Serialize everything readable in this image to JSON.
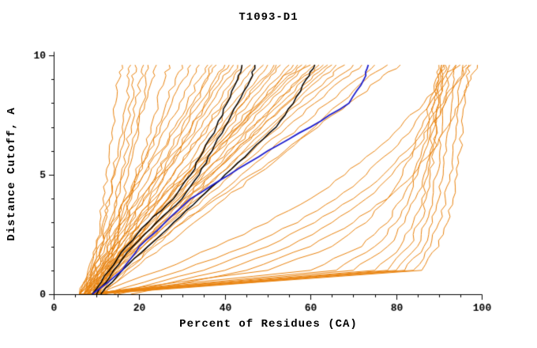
{
  "chart_data": {
    "type": "line",
    "title": "T1093-D1",
    "xlabel": "Percent of Residues (CA)",
    "ylabel": "Distance Cutoff, A",
    "xlim": [
      0,
      100
    ],
    "ylim": [
      0,
      10
    ],
    "x_ticks": [
      0,
      20,
      40,
      60,
      80,
      100
    ],
    "x_minor_step": 5,
    "y_ticks": [
      0,
      5,
      10
    ],
    "y_minor_step": 1,
    "grid": false,
    "legend": "none",
    "axis_color": "#000000",
    "y_grid": [
      0,
      1,
      2,
      3,
      4,
      5,
      6,
      7,
      8,
      9,
      9.6
    ],
    "series_groups": [
      {
        "key": "model-curves",
        "color": "#e8820e",
        "width": 1,
        "jitter": 3.2,
        "curves": [
          [
            8,
            9,
            10,
            10.8,
            11.5,
            12.2,
            13,
            13.8,
            14.5,
            15.3,
            16
          ],
          [
            9,
            10,
            11,
            12,
            13,
            14,
            15,
            16,
            17,
            17.6,
            18
          ],
          [
            10,
            11.2,
            12.4,
            13.5,
            14.7,
            15.8,
            17,
            18.1,
            19.2,
            20.3,
            21
          ],
          [
            8,
            9.7,
            11.4,
            13,
            14.7,
            16.3,
            18,
            19.7,
            21.3,
            23,
            24
          ],
          [
            11,
            12.7,
            14.4,
            16,
            17.7,
            19.3,
            21,
            22.7,
            24.3,
            26,
            27
          ],
          [
            9,
            11.2,
            13.4,
            15.5,
            17.7,
            19.8,
            22,
            24.1,
            26.3,
            28.4,
            30
          ],
          [
            12,
            13,
            14.2,
            15.3,
            16.4,
            17.5,
            18.6,
            19.7,
            20.8,
            21.5,
            22
          ],
          [
            7,
            8.5,
            10,
            11.5,
            13,
            14.3,
            15.6,
            16.9,
            18,
            18.6,
            19
          ],
          [
            6,
            8.7,
            11.4,
            14.1,
            16.8,
            19.5,
            22.2,
            24.9,
            27.6,
            30.3,
            32
          ],
          [
            7,
            9.8,
            12.6,
            15.4,
            18.2,
            21,
            23.8,
            26.6,
            29.4,
            32.2,
            34
          ],
          [
            8,
            10.9,
            13.8,
            16.7,
            19.6,
            22.5,
            25.4,
            28.3,
            31.2,
            34.1,
            36
          ],
          [
            6,
            8,
            10.5,
            13.5,
            17,
            21,
            25,
            29,
            32.5,
            35.5,
            37
          ],
          [
            9,
            12,
            15,
            18,
            21,
            24,
            27,
            30,
            33,
            36,
            38
          ],
          [
            7,
            10.4,
            13.8,
            17.2,
            20.6,
            24,
            27.4,
            30.8,
            34.2,
            37.6,
            40
          ],
          [
            10,
            13.2,
            16.4,
            19.5,
            22.7,
            25.8,
            29,
            32.2,
            35.3,
            38.5,
            41
          ],
          [
            8,
            11.6,
            15.2,
            18.8,
            22.4,
            26,
            29.6,
            33.2,
            36.8,
            40.4,
            43
          ],
          [
            6,
            9,
            12,
            16,
            20,
            25,
            30,
            34.5,
            38.5,
            42,
            44
          ],
          [
            9,
            12.8,
            16.6,
            20.4,
            24.2,
            28,
            31.8,
            35.6,
            39.4,
            43.2,
            46
          ],
          [
            7,
            11.2,
            15.3,
            19.5,
            23.6,
            27.8,
            31.9,
            36.1,
            40.2,
            44.4,
            47
          ],
          [
            8,
            12.2,
            16.5,
            20.7,
            25,
            29.2,
            33.5,
            37.7,
            42,
            46.2,
            49
          ],
          [
            10,
            14.2,
            18.3,
            22.5,
            26.7,
            30.8,
            35,
            39.2,
            43.3,
            47.5,
            50
          ],
          [
            6,
            10.8,
            15.6,
            20.4,
            25.2,
            30,
            34.8,
            39.6,
            44.4,
            49.2,
            52
          ],
          [
            8,
            12.7,
            17.4,
            22.1,
            26.8,
            31.5,
            36.2,
            40.9,
            45.6,
            50.3,
            53
          ],
          [
            7,
            12,
            17,
            22,
            27,
            32,
            37,
            42,
            47,
            52,
            55
          ],
          [
            9,
            13.9,
            18.8,
            23.7,
            28.6,
            33.5,
            38.4,
            43.3,
            48.2,
            53.1,
            56
          ],
          [
            6,
            9.5,
            14,
            19,
            25,
            31,
            37,
            43,
            48.5,
            54,
            58
          ],
          [
            8,
            13.3,
            18.6,
            23.9,
            29.2,
            34.5,
            39.8,
            45.1,
            50.4,
            55.7,
            59
          ],
          [
            7,
            12.6,
            18.2,
            23.8,
            29.4,
            35,
            40.6,
            46.2,
            51.8,
            57.4,
            61
          ],
          [
            10,
            15.4,
            20.8,
            26.2,
            31.6,
            37,
            42.4,
            47.8,
            53.2,
            58.6,
            62
          ],
          [
            8,
            13.8,
            19.6,
            25.4,
            31.2,
            37,
            42.8,
            48.6,
            54.4,
            60.2,
            64
          ],
          [
            6,
            12.1,
            18.2,
            24.3,
            30.4,
            36.5,
            42.6,
            48.7,
            54.8,
            60.9,
            65
          ],
          [
            9,
            14.9,
            20.8,
            26.7,
            32.6,
            38.5,
            44.4,
            50.3,
            56.2,
            62.1,
            66
          ],
          [
            7,
            13.4,
            19.7,
            26,
            32.3,
            38.6,
            44.9,
            51.2,
            57.5,
            63.8,
            68
          ],
          [
            8,
            14.4,
            20.8,
            27.2,
            33.6,
            40,
            46.4,
            52.8,
            59.2,
            65.6,
            70
          ],
          [
            9,
            15.5,
            22,
            28.5,
            35,
            41.5,
            48,
            54.5,
            61,
            67.5,
            72
          ],
          [
            10,
            16.8,
            23.5,
            30.3,
            37,
            43.8,
            50.5,
            57.3,
            64,
            70.8,
            75
          ],
          [
            12,
            17,
            23,
            30,
            38,
            46,
            54,
            61,
            67,
            73,
            78
          ],
          [
            11,
            18.3,
            25.5,
            32.8,
            40,
            47.3,
            54.5,
            61.8,
            69,
            76.3,
            81
          ],
          [
            7,
            78,
            83,
            85.5,
            87,
            88,
            88.8,
            89.4,
            90,
            90.5,
            91
          ],
          [
            8,
            80,
            85,
            87,
            88.5,
            89.5,
            90.2,
            90.8,
            91.4,
            92,
            92.5
          ],
          [
            6,
            75,
            81,
            84,
            86,
            87.5,
            88.5,
            89.5,
            90.3,
            91,
            91.5
          ],
          [
            9,
            82,
            86.5,
            88.5,
            90,
            91,
            91.8,
            92.5,
            93,
            93.6,
            94
          ],
          [
            7,
            70,
            78,
            82,
            84.5,
            86.5,
            88,
            89,
            90,
            90.8,
            91.3
          ],
          [
            8,
            84,
            88,
            90,
            91.5,
            92.5,
            93.3,
            94,
            94.6,
            95.2,
            95.6
          ],
          [
            6,
            66,
            75,
            80,
            83,
            85,
            86.7,
            88,
            89,
            90,
            90.6
          ],
          [
            10,
            86,
            90,
            92,
            93.3,
            94.3,
            95,
            95.6,
            96.2,
            96.7,
            97
          ],
          [
            7,
            60,
            72,
            78,
            81.5,
            84,
            86,
            87.5,
            88.8,
            90,
            90.7
          ],
          [
            8,
            50,
            65,
            73,
            78,
            81.5,
            84,
            86,
            87.8,
            89.3,
            90
          ],
          [
            12,
            30,
            45,
            57,
            66,
            73,
            79,
            84,
            88,
            92,
            95
          ],
          [
            10,
            25,
            38,
            50,
            60,
            68,
            75,
            81,
            86.5,
            91,
            94
          ],
          [
            15,
            40,
            55,
            65,
            73,
            79,
            84,
            88,
            91.5,
            95,
            97.5
          ],
          [
            14,
            35,
            50,
            61,
            70,
            77,
            82.5,
            87,
            91,
            94.5,
            96.5
          ],
          [
            18,
            45,
            60,
            70,
            78,
            84,
            88.5,
            92,
            95,
            97.5,
            99
          ],
          [
            7,
            10.6,
            14.2,
            17.8,
            21.4,
            25,
            28.6,
            32.2,
            35.8,
            39.4,
            42
          ],
          [
            9,
            13.4,
            17.8,
            22.2,
            26.6,
            31,
            35.4,
            39.8,
            44.2,
            48.6,
            51.5
          ],
          [
            8,
            13,
            18,
            23,
            28,
            33,
            38,
            43,
            48,
            53,
            57
          ],
          [
            6,
            11.4,
            16.8,
            22.2,
            27.6,
            33,
            38.4,
            43.8,
            49.2,
            54.6,
            60
          ],
          [
            9,
            14.4,
            19.8,
            25.2,
            30.6,
            36,
            41.4,
            46.8,
            52.2,
            57.6,
            63
          ]
        ]
      },
      {
        "key": "reference-curves",
        "color": "#000000",
        "width": 1.5,
        "jitter": 1.4,
        "curves": [
          [
            9,
            13,
            17,
            22,
            28,
            32,
            35,
            38,
            40.5,
            43,
            44
          ],
          [
            10,
            14,
            18.5,
            24,
            30,
            34,
            37,
            40,
            43,
            46,
            47
          ],
          [
            11,
            16,
            22,
            28,
            34,
            40,
            46,
            52,
            56,
            59,
            61
          ]
        ]
      },
      {
        "key": "highlight-curve",
        "color": "#1d1dcd",
        "width": 1.8,
        "jitter": 1.2,
        "curves": [
          [
            9,
            16,
            20,
            26,
            32,
            41,
            50,
            60,
            69,
            72.5,
            73.5
          ]
        ]
      }
    ]
  }
}
